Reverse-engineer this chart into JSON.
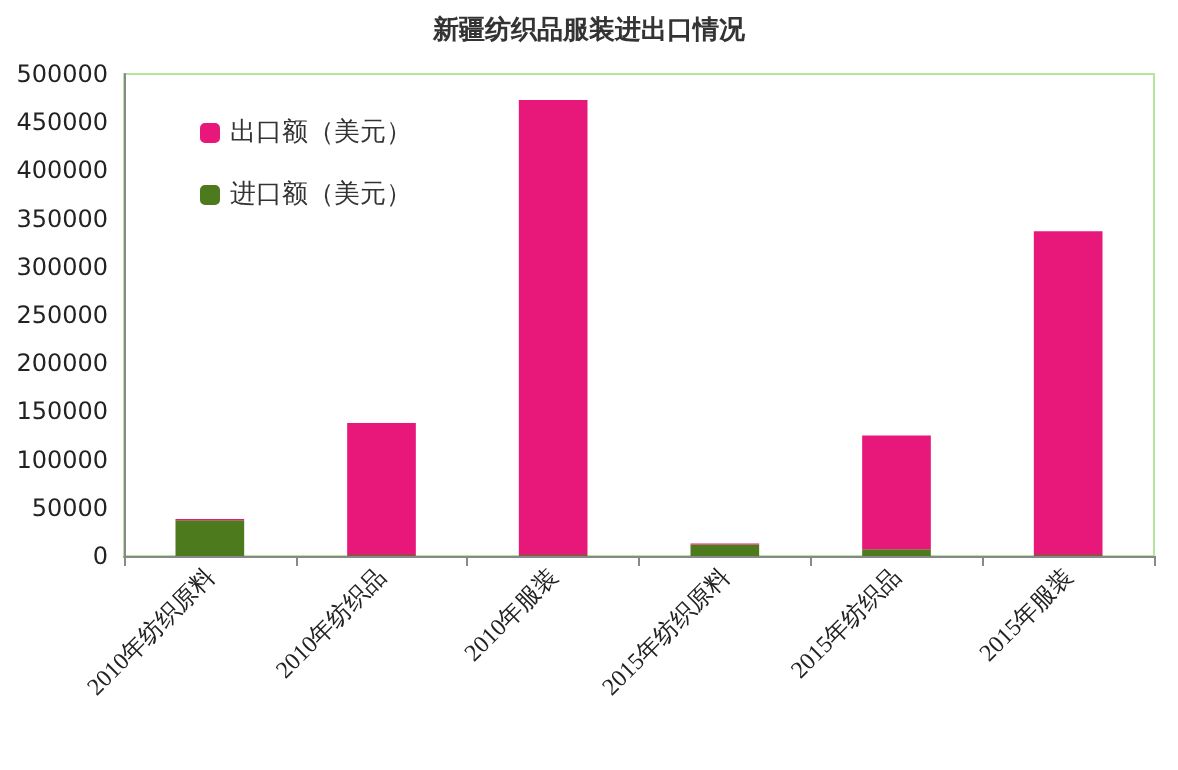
{
  "chart_data": {
    "type": "bar",
    "title": "新疆纺织品服装进出口情况",
    "categories": [
      "2010年纺织原料",
      "2010年纺织品",
      "2010年服装",
      "2015年纺织原料",
      "2015年纺织品",
      "2015年服装"
    ],
    "stacked": true,
    "series": [
      {
        "name": "进口额（美元）",
        "color": "#4e7a1e",
        "values": [
          37000,
          1000,
          1000,
          12000,
          7000,
          1000
        ]
      },
      {
        "name": "出口额（美元）",
        "color": "#e8177a",
        "values": [
          1500,
          137000,
          472000,
          1000,
          118000,
          336000
        ]
      }
    ],
    "ylim": [
      0,
      500000
    ],
    "yticks": [
      0,
      50000,
      100000,
      150000,
      200000,
      250000,
      300000,
      350000,
      400000,
      450000,
      500000
    ],
    "grid": false,
    "legend": "top left"
  }
}
